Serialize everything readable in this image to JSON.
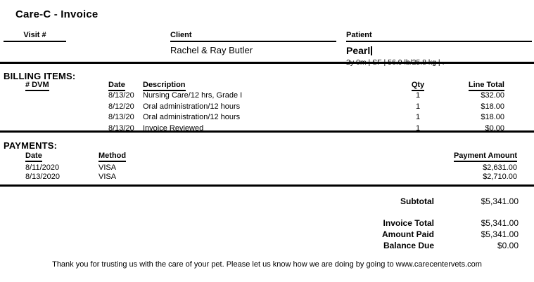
{
  "header": {
    "title": "Care-C - Invoice"
  },
  "fields": {
    "visit": {
      "label": "Visit #",
      "value": ""
    },
    "client": {
      "label": "Client",
      "value": "Rachel & Ray Butler"
    },
    "patient": {
      "label": "Patient",
      "name": "Pearl",
      "details": "2y 0m | SF | 56.9 lb/25.8 kg | ."
    }
  },
  "billing": {
    "heading": "BILLING ITEMS:",
    "columns": {
      "num_dvm": "# DVM",
      "date": "Date",
      "description": "Description",
      "qty": "Qty",
      "line_total": "Line Total"
    },
    "items": [
      {
        "date": "8/13/20",
        "description": "Nursing Care/12 hrs, Grade I",
        "qty": "1",
        "line_total": "$32.00"
      },
      {
        "date": "8/12/20",
        "description": "Oral administration/12 hours",
        "qty": "1",
        "line_total": "$18.00"
      },
      {
        "date": "8/13/20",
        "description": "Oral administration/12 hours",
        "qty": "1",
        "line_total": "$18.00"
      },
      {
        "date": "8/13/20",
        "description": "Invoice Reviewed",
        "qty": "1",
        "line_total": "$0.00"
      }
    ]
  },
  "payments": {
    "heading": "PAYMENTS:",
    "columns": {
      "date": "Date",
      "method": "Method",
      "amount": "Payment Amount"
    },
    "items": [
      {
        "date": "8/11/2020",
        "method": "VISA",
        "amount": "$2,631.00"
      },
      {
        "date": "8/13/2020",
        "method": "VISA",
        "amount": "$2,710.00"
      }
    ]
  },
  "totals": {
    "subtotal": {
      "label": "Subtotal",
      "value": "$5,341.00"
    },
    "invoice_total": {
      "label": "Invoice Total",
      "value": "$5,341.00"
    },
    "amount_paid": {
      "label": "Amount Paid",
      "value": "$5,341.00"
    },
    "balance_due": {
      "label": "Balance Due",
      "value": "$0.00"
    }
  },
  "footer": {
    "message": "Thank you for trusting us with the care of your pet.  Please let us know how we are doing by going to www.carecentervets.com"
  },
  "colors": {
    "text": "#000000",
    "background": "#ffffff",
    "rule": "#000000"
  }
}
